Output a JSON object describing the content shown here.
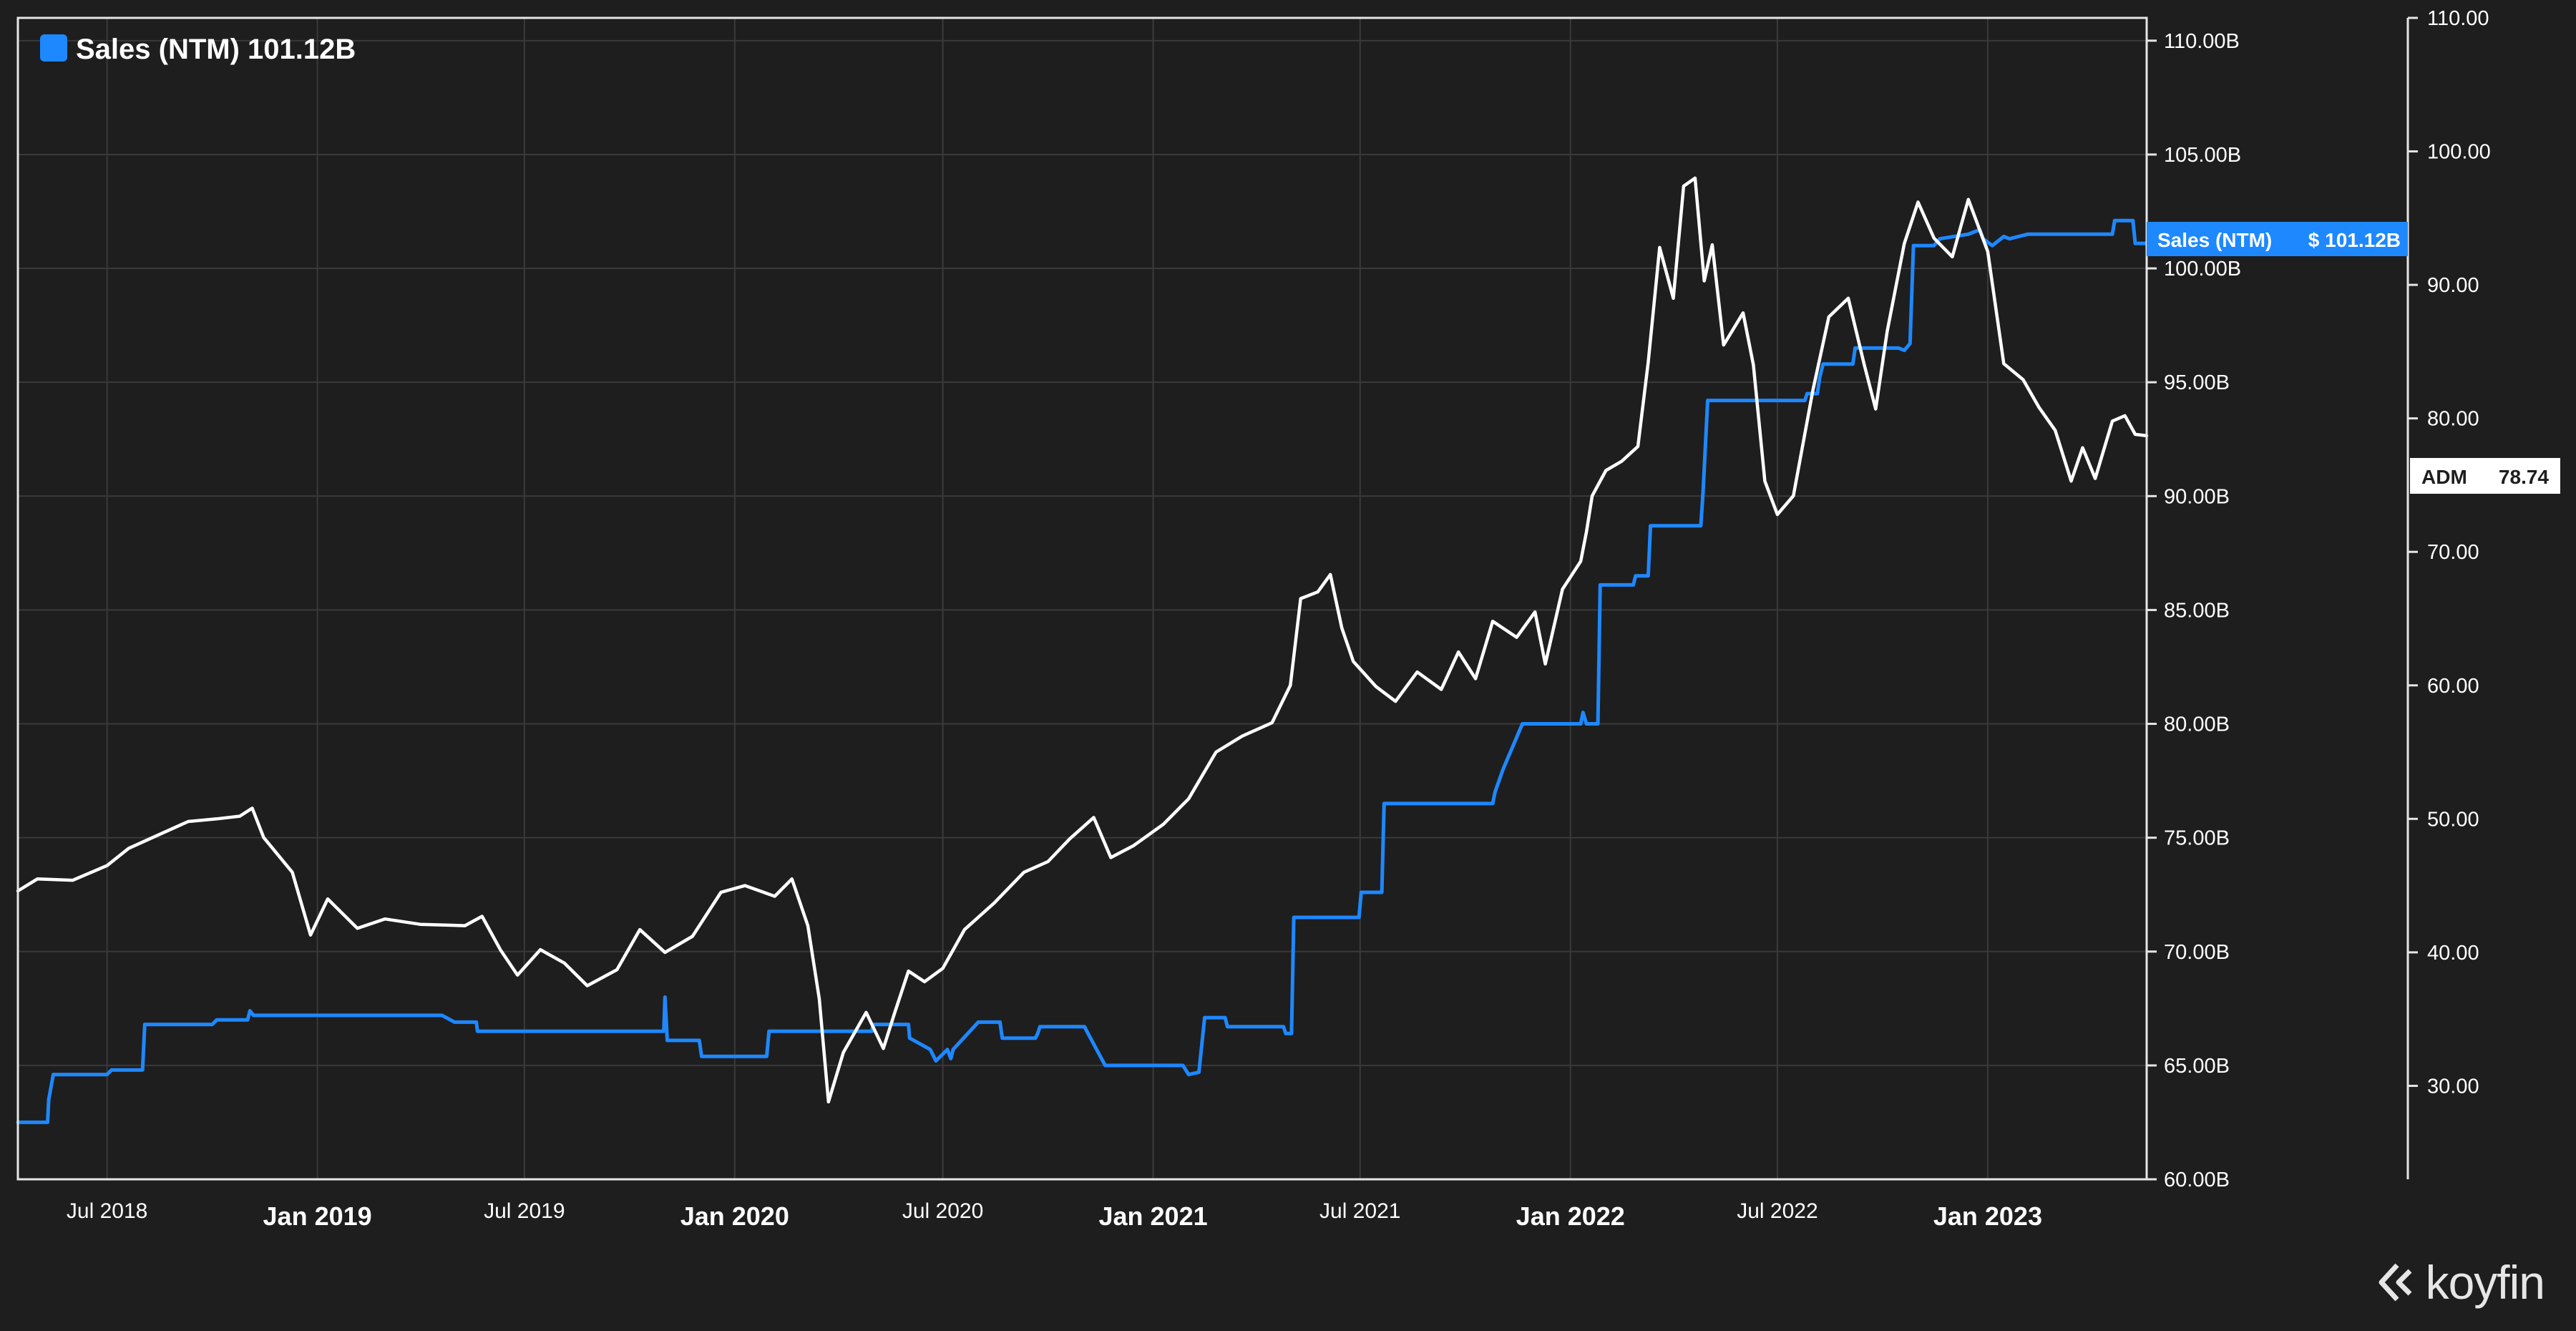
{
  "legend": {
    "label": "Sales (NTM) 101.12B",
    "color": "#1e88ff"
  },
  "price_tag": {
    "name": "ADM",
    "value": "78.74"
  },
  "sales_tag": {
    "name": "Sales (NTM)",
    "value": "$ 101.12B"
  },
  "brand": {
    "name": "koyfin"
  },
  "colors": {
    "sales": "#1e88ff",
    "price": "#ffffff",
    "background": "#1e1e1e",
    "grid": "#3a3a3a"
  },
  "chart_data": {
    "type": "line",
    "x_axis": {
      "range": [
        "2018-04-14",
        "2023-05-20"
      ],
      "ticks": [
        {
          "label": "Jul 2018",
          "date": "2018-07-01",
          "major": false
        },
        {
          "label": "Jan 2019",
          "date": "2019-01-01",
          "major": true
        },
        {
          "label": "Jul 2019",
          "date": "2019-07-01",
          "major": false
        },
        {
          "label": "Jan 2020",
          "date": "2020-01-01",
          "major": true
        },
        {
          "label": "Jul 2020",
          "date": "2020-07-01",
          "major": false
        },
        {
          "label": "Jan 2021",
          "date": "2021-01-01",
          "major": true
        },
        {
          "label": "Jul 2021",
          "date": "2021-07-01",
          "major": false
        },
        {
          "label": "Jan 2022",
          "date": "2022-01-01",
          "major": true
        },
        {
          "label": "Jul 2022",
          "date": "2022-07-01",
          "major": false
        },
        {
          "label": "Jan 2023",
          "date": "2023-01-01",
          "major": true
        }
      ]
    },
    "y_left": {
      "range": [
        60,
        111
      ],
      "unit": "B",
      "ticks": [
        "60.00B",
        "65.00B",
        "70.00B",
        "75.00B",
        "80.00B",
        "85.00B",
        "90.00B",
        "95.00B",
        "100.00B",
        "105.00B",
        "110.00B"
      ]
    },
    "y_right": {
      "range": [
        23,
        110
      ],
      "ticks": [
        "30.00",
        "40.00",
        "50.00",
        "60.00",
        "70.00",
        "80.00",
        "90.00",
        "100.00",
        "110.00"
      ]
    },
    "grid": true,
    "legend_position": "top-left",
    "series": [
      {
        "name": "Sales (NTM)",
        "axis": "left",
        "step": true,
        "points": [
          [
            "2018-04-14",
            62.5
          ],
          [
            "2018-05-10",
            62.5
          ],
          [
            "2018-05-11",
            63.5
          ],
          [
            "2018-05-15",
            64.6
          ],
          [
            "2018-07-01",
            64.6
          ],
          [
            "2018-07-05",
            64.8
          ],
          [
            "2018-08-01",
            64.8
          ],
          [
            "2018-08-03",
            66.8
          ],
          [
            "2018-10-01",
            66.8
          ],
          [
            "2018-10-05",
            67.0
          ],
          [
            "2018-11-01",
            67.0
          ],
          [
            "2018-11-03",
            67.4
          ],
          [
            "2018-11-06",
            67.2
          ],
          [
            "2019-04-20",
            67.2
          ],
          [
            "2019-05-01",
            66.9
          ],
          [
            "2019-05-20",
            66.9
          ],
          [
            "2019-05-21",
            66.5
          ],
          [
            "2019-10-31",
            66.5
          ],
          [
            "2019-11-01",
            68.0
          ],
          [
            "2019-11-03",
            66.1
          ],
          [
            "2019-12-01",
            66.1
          ],
          [
            "2019-12-03",
            65.4
          ],
          [
            "2020-01-29",
            65.4
          ],
          [
            "2020-01-31",
            66.5
          ],
          [
            "2020-04-30",
            66.5
          ],
          [
            "2020-05-01",
            66.8
          ],
          [
            "2020-06-01",
            66.8
          ],
          [
            "2020-06-02",
            66.2
          ],
          [
            "2020-06-20",
            65.7
          ],
          [
            "2020-06-25",
            65.2
          ],
          [
            "2020-07-05",
            65.7
          ],
          [
            "2020-07-08",
            65.3
          ],
          [
            "2020-07-10",
            65.7
          ],
          [
            "2020-08-01",
            66.9
          ],
          [
            "2020-08-20",
            66.9
          ],
          [
            "2020-08-22",
            66.2
          ],
          [
            "2020-09-20",
            66.2
          ],
          [
            "2020-09-22",
            66.4
          ],
          [
            "2020-09-24",
            66.7
          ],
          [
            "2020-11-02",
            66.7
          ],
          [
            "2020-11-04",
            66.5
          ],
          [
            "2020-11-20",
            65.0
          ],
          [
            "2021-01-27",
            65.0
          ],
          [
            "2021-02-01",
            64.6
          ],
          [
            "2021-02-10",
            64.7
          ],
          [
            "2021-02-15",
            67.1
          ],
          [
            "2021-03-05",
            67.1
          ],
          [
            "2021-03-07",
            66.7
          ],
          [
            "2021-04-25",
            66.7
          ],
          [
            "2021-04-27",
            66.4
          ],
          [
            "2021-05-02",
            66.4
          ],
          [
            "2021-05-04",
            71.5
          ],
          [
            "2021-06-30",
            71.5
          ],
          [
            "2021-07-02",
            72.6
          ],
          [
            "2021-07-20",
            72.6
          ],
          [
            "2021-07-22",
            76.5
          ],
          [
            "2021-10-25",
            76.5
          ],
          [
            "2021-10-27",
            77.0
          ],
          [
            "2021-11-03",
            78.0
          ],
          [
            "2021-11-20",
            80.0
          ],
          [
            "2022-01-10",
            80.0
          ],
          [
            "2022-01-12",
            80.5
          ],
          [
            "2022-01-15",
            80.0
          ],
          [
            "2022-01-25",
            80.0
          ],
          [
            "2022-01-27",
            86.1
          ],
          [
            "2022-02-25",
            86.1
          ],
          [
            "2022-02-27",
            86.5
          ],
          [
            "2022-03-10",
            86.5
          ],
          [
            "2022-03-12",
            88.7
          ],
          [
            "2022-04-25",
            88.7
          ],
          [
            "2022-04-27",
            90.2
          ],
          [
            "2022-05-01",
            94.2
          ],
          [
            "2022-07-25",
            94.2
          ],
          [
            "2022-07-27",
            94.5
          ],
          [
            "2022-08-05",
            94.5
          ],
          [
            "2022-08-07",
            95.2
          ],
          [
            "2022-08-10",
            95.8
          ],
          [
            "2022-09-05",
            95.8
          ],
          [
            "2022-09-07",
            96.5
          ],
          [
            "2022-10-15",
            96.5
          ],
          [
            "2022-10-20",
            96.4
          ],
          [
            "2022-10-25",
            96.7
          ],
          [
            "2022-10-28",
            101.0
          ],
          [
            "2022-11-15",
            101.0
          ],
          [
            "2022-11-20",
            101.3
          ],
          [
            "2022-12-15",
            101.5
          ],
          [
            "2022-12-25",
            101.7
          ],
          [
            "2022-12-28",
            101.3
          ],
          [
            "2023-01-05",
            101.0
          ],
          [
            "2023-01-15",
            101.4
          ],
          [
            "2023-01-20",
            101.3
          ],
          [
            "2023-02-05",
            101.5
          ],
          [
            "2023-03-15",
            101.5
          ],
          [
            "2023-04-20",
            101.5
          ],
          [
            "2023-04-22",
            102.1
          ],
          [
            "2023-05-08",
            102.1
          ],
          [
            "2023-05-10",
            101.1
          ],
          [
            "2023-05-20",
            101.1
          ]
        ]
      },
      {
        "name": "ADM",
        "axis": "right",
        "step": false,
        "points": [
          [
            "2018-04-14",
            44.6
          ],
          [
            "2018-05-01",
            45.5
          ],
          [
            "2018-06-01",
            45.4
          ],
          [
            "2018-07-01",
            46.5
          ],
          [
            "2018-07-20",
            47.8
          ],
          [
            "2018-08-15",
            48.8
          ],
          [
            "2018-09-10",
            49.8
          ],
          [
            "2018-10-05",
            50.0
          ],
          [
            "2018-10-25",
            50.2
          ],
          [
            "2018-11-05",
            50.8
          ],
          [
            "2018-11-15",
            48.6
          ],
          [
            "2018-12-10",
            46.0
          ],
          [
            "2018-12-26",
            41.3
          ],
          [
            "2019-01-10",
            44.0
          ],
          [
            "2019-02-05",
            41.8
          ],
          [
            "2019-03-01",
            42.5
          ],
          [
            "2019-04-01",
            42.1
          ],
          [
            "2019-05-10",
            42.0
          ],
          [
            "2019-05-25",
            42.7
          ],
          [
            "2019-06-10",
            40.2
          ],
          [
            "2019-06-25",
            38.3
          ],
          [
            "2019-07-15",
            40.2
          ],
          [
            "2019-08-05",
            39.2
          ],
          [
            "2019-08-25",
            37.5
          ],
          [
            "2019-09-20",
            38.7
          ],
          [
            "2019-10-10",
            41.7
          ],
          [
            "2019-11-01",
            40.0
          ],
          [
            "2019-11-25",
            41.2
          ],
          [
            "2019-12-20",
            44.5
          ],
          [
            "2020-01-10",
            45.0
          ],
          [
            "2020-02-05",
            44.2
          ],
          [
            "2020-02-20",
            45.5
          ],
          [
            "2020-03-05",
            42.0
          ],
          [
            "2020-03-15",
            36.5
          ],
          [
            "2020-03-23",
            28.8
          ],
          [
            "2020-04-05",
            32.5
          ],
          [
            "2020-04-25",
            35.5
          ],
          [
            "2020-05-10",
            32.8
          ],
          [
            "2020-05-20",
            35.5
          ],
          [
            "2020-06-01",
            38.6
          ],
          [
            "2020-06-15",
            37.8
          ],
          [
            "2020-07-01",
            38.8
          ],
          [
            "2020-07-20",
            41.7
          ],
          [
            "2020-08-15",
            43.7
          ],
          [
            "2020-09-10",
            46.0
          ],
          [
            "2020-10-01",
            46.8
          ],
          [
            "2020-10-20",
            48.5
          ],
          [
            "2020-11-10",
            50.1
          ],
          [
            "2020-11-25",
            47.1
          ],
          [
            "2020-12-15",
            48.0
          ],
          [
            "2021-01-10",
            49.6
          ],
          [
            "2021-02-01",
            51.5
          ],
          [
            "2021-02-25",
            55.0
          ],
          [
            "2021-03-20",
            56.2
          ],
          [
            "2021-04-15",
            57.2
          ],
          [
            "2021-05-01",
            60.0
          ],
          [
            "2021-05-10",
            66.5
          ],
          [
            "2021-05-25",
            67.0
          ],
          [
            "2021-06-05",
            68.3
          ],
          [
            "2021-06-15",
            64.3
          ],
          [
            "2021-06-25",
            61.8
          ],
          [
            "2021-07-15",
            59.9
          ],
          [
            "2021-08-01",
            58.8
          ],
          [
            "2021-08-20",
            61.0
          ],
          [
            "2021-09-10",
            59.7
          ],
          [
            "2021-09-25",
            62.5
          ],
          [
            "2021-10-10",
            60.5
          ],
          [
            "2021-10-25",
            64.8
          ],
          [
            "2021-11-15",
            63.6
          ],
          [
            "2021-12-01",
            65.5
          ],
          [
            "2021-12-10",
            61.6
          ],
          [
            "2021-12-25",
            67.2
          ],
          [
            "2022-01-10",
            69.3
          ],
          [
            "2022-01-15",
            71.5
          ],
          [
            "2022-01-20",
            74.2
          ],
          [
            "2022-02-01",
            76.1
          ],
          [
            "2022-02-15",
            76.8
          ],
          [
            "2022-03-01",
            77.9
          ],
          [
            "2022-03-10",
            84.2
          ],
          [
            "2022-03-20",
            92.8
          ],
          [
            "2022-04-01",
            89.0
          ],
          [
            "2022-04-10",
            97.4
          ],
          [
            "2022-04-20",
            98.0
          ],
          [
            "2022-04-28",
            90.3
          ],
          [
            "2022-05-05",
            93.0
          ],
          [
            "2022-05-15",
            85.5
          ],
          [
            "2022-06-01",
            87.9
          ],
          [
            "2022-06-10",
            84.0
          ],
          [
            "2022-06-20",
            75.3
          ],
          [
            "2022-07-01",
            72.8
          ],
          [
            "2022-07-15",
            74.2
          ],
          [
            "2022-08-01",
            82.1
          ],
          [
            "2022-08-15",
            87.6
          ],
          [
            "2022-09-01",
            89.0
          ],
          [
            "2022-09-15",
            84.0
          ],
          [
            "2022-09-25",
            80.7
          ],
          [
            "2022-10-05",
            86.5
          ],
          [
            "2022-10-20",
            93.1
          ],
          [
            "2022-11-01",
            96.2
          ],
          [
            "2022-11-15",
            93.5
          ],
          [
            "2022-12-01",
            92.1
          ],
          [
            "2022-12-15",
            96.4
          ],
          [
            "2023-01-01",
            92.5
          ],
          [
            "2023-01-15",
            84.1
          ],
          [
            "2023-02-01",
            82.9
          ],
          [
            "2023-02-15",
            80.8
          ],
          [
            "2023-03-01",
            79.1
          ],
          [
            "2023-03-15",
            75.3
          ],
          [
            "2023-03-25",
            77.8
          ],
          [
            "2023-04-05",
            75.5
          ],
          [
            "2023-04-20",
            79.8
          ],
          [
            "2023-05-01",
            80.2
          ],
          [
            "2023-05-10",
            78.8
          ],
          [
            "2023-05-20",
            78.7
          ]
        ]
      }
    ]
  }
}
